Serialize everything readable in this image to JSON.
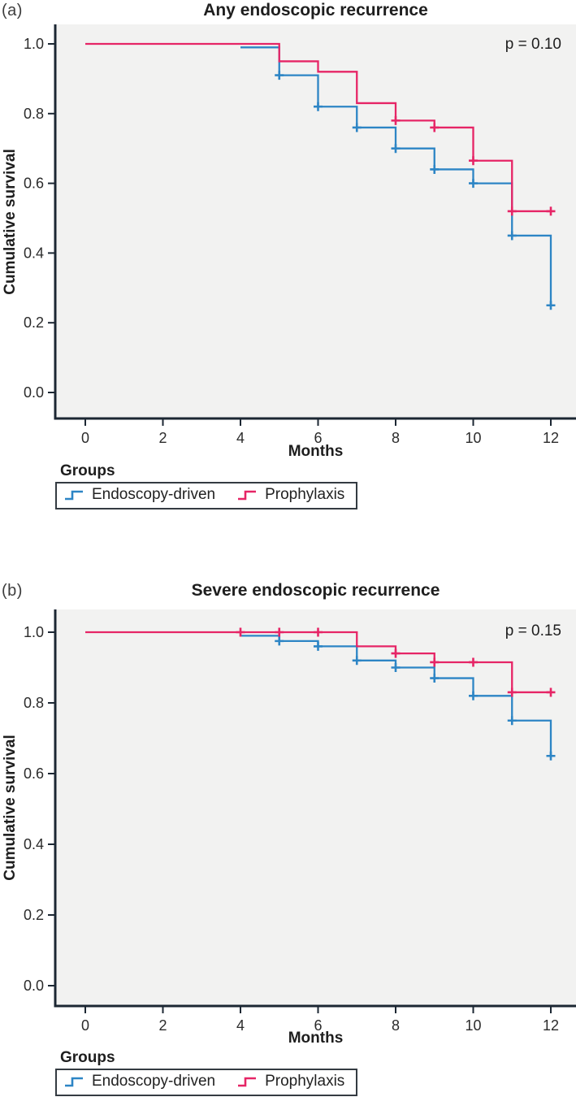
{
  "chart_data": [
    {
      "type": "line",
      "subtype": "kaplan-meier-step",
      "panel_label": "(a)",
      "title": "Any endoscopic recurrence",
      "p_value": "p = 0.10",
      "xlabel": "Months",
      "ylabel": "Cumulative survival",
      "legend_title": "Groups",
      "legend_position": "below",
      "grid": false,
      "xlim": [
        0,
        12
      ],
      "ylim": [
        0.0,
        1.0
      ],
      "x_ticks": [
        0,
        2,
        4,
        6,
        8,
        10,
        12
      ],
      "y_ticks": [
        1.0,
        0.8,
        0.6,
        0.4,
        0.2,
        0.0
      ],
      "series": [
        {
          "name": "Endoscopy-driven",
          "color": "#2D85C5",
          "visible_start": [
            4,
            0.99
          ],
          "steps": [
            [
              5,
              0.91
            ],
            [
              6,
              0.82
            ],
            [
              7,
              0.76
            ],
            [
              8,
              0.7
            ],
            [
              9,
              0.64
            ],
            [
              10,
              0.6
            ],
            [
              11,
              0.45
            ],
            [
              12,
              0.25
            ]
          ],
          "end_x": 12,
          "censor_marks": [
            [
              5,
              0.91
            ],
            [
              6,
              0.82
            ],
            [
              7,
              0.76
            ],
            [
              8,
              0.7
            ],
            [
              9,
              0.64
            ],
            [
              10,
              0.6
            ],
            [
              11,
              0.45
            ],
            [
              12,
              0.25
            ]
          ]
        },
        {
          "name": "Prophylaxis",
          "color": "#E62566",
          "visible_start": [
            0,
            1.0
          ],
          "steps": [
            [
              5,
              0.95
            ],
            [
              6,
              0.92
            ],
            [
              7,
              0.83
            ],
            [
              8,
              0.78
            ],
            [
              9,
              0.76
            ],
            [
              10,
              0.665
            ],
            [
              11,
              0.52
            ]
          ],
          "end_x": 12,
          "censor_marks": [
            [
              8,
              0.78
            ],
            [
              9,
              0.76
            ],
            [
              10,
              0.665
            ],
            [
              11,
              0.52
            ],
            [
              12,
              0.52
            ]
          ]
        }
      ]
    },
    {
      "type": "line",
      "subtype": "kaplan-meier-step",
      "panel_label": "(b)",
      "title": "Severe endoscopic recurrence",
      "p_value": "p = 0.15",
      "xlabel": "Months",
      "ylabel": "Cumulative survival",
      "legend_title": "Groups",
      "legend_position": "below",
      "grid": false,
      "xlim": [
        0,
        12
      ],
      "ylim": [
        0.0,
        1.0
      ],
      "x_ticks": [
        0,
        2,
        4,
        6,
        8,
        10,
        12
      ],
      "y_ticks": [
        1.0,
        0.8,
        0.6,
        0.4,
        0.2,
        0.0
      ],
      "series": [
        {
          "name": "Endoscopy-driven",
          "color": "#2D85C5",
          "visible_start": [
            4,
            0.99
          ],
          "steps": [
            [
              5,
              0.975
            ],
            [
              6,
              0.96
            ],
            [
              7,
              0.92
            ],
            [
              8,
              0.9
            ],
            [
              9,
              0.87
            ],
            [
              10,
              0.82
            ],
            [
              11,
              0.75
            ],
            [
              12,
              0.65
            ]
          ],
          "end_x": 12,
          "censor_marks": [
            [
              5,
              0.975
            ],
            [
              6,
              0.96
            ],
            [
              7,
              0.92
            ],
            [
              8,
              0.9
            ],
            [
              9,
              0.87
            ],
            [
              10,
              0.82
            ],
            [
              11,
              0.75
            ],
            [
              12,
              0.65
            ]
          ]
        },
        {
          "name": "Prophylaxis",
          "color": "#E62566",
          "visible_start": [
            0,
            1.0
          ],
          "steps": [
            [
              7,
              0.96
            ],
            [
              8,
              0.94
            ],
            [
              9,
              0.915
            ],
            [
              11,
              0.83
            ]
          ],
          "end_x": 12,
          "censor_marks": [
            [
              4,
              1.0
            ],
            [
              5,
              1.0
            ],
            [
              6,
              1.0
            ],
            [
              8,
              0.94
            ],
            [
              9,
              0.915
            ],
            [
              10,
              0.915
            ],
            [
              11,
              0.83
            ],
            [
              12,
              0.83
            ]
          ]
        }
      ]
    }
  ]
}
